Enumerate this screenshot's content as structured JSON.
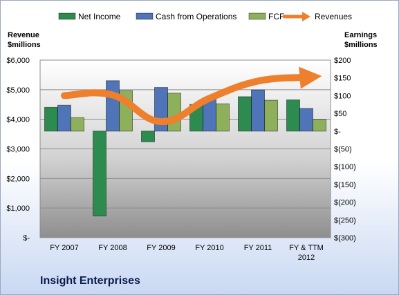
{
  "company_title": "Insight Enterprises",
  "colors": {
    "net_income": "#2e8b50",
    "cash_from_operations": "#4f74b8",
    "fcf": "#8fb05a",
    "revenues": "#ee7f2d"
  },
  "chart_data": {
    "type": "bar",
    "categories": [
      "FY 2007",
      "FY 2008",
      "FY 2009",
      "FY 2010",
      "FY 2011",
      "FY & TTM\n2012"
    ],
    "series": [
      {
        "name": "Net Income",
        "axis": "right",
        "values": [
          67,
          -239,
          -30,
          75,
          97,
          88
        ]
      },
      {
        "name": "Cash from Operations",
        "axis": "right",
        "values": [
          73,
          142,
          123,
          94,
          116,
          64
        ]
      },
      {
        "name": "FCF",
        "axis": "right",
        "values": [
          38,
          114,
          107,
          77,
          87,
          33
        ]
      },
      {
        "name": "Revenues",
        "axis": "left",
        "type": "line",
        "values": [
          4800,
          4820,
          3920,
          4710,
          5290,
          5420
        ]
      }
    ],
    "left_axis": {
      "title": "Revenue\n$millions",
      "ylim": [
        0,
        6000
      ],
      "ticks": [
        0,
        1000,
        2000,
        3000,
        4000,
        5000,
        6000
      ],
      "tick_labels": [
        "$-",
        "$1,000",
        "$2,000",
        "$3,000",
        "$4,000",
        "$5,000",
        "$6,000"
      ]
    },
    "right_axis": {
      "title": "Earnings\n$millions",
      "ylim": [
        -300,
        200
      ],
      "ticks": [
        -300,
        -250,
        -200,
        -150,
        -100,
        -50,
        0,
        50,
        100,
        150,
        200
      ],
      "tick_labels": [
        "$(300)",
        "$(250)",
        "$(200)",
        "$(150)",
        "$(100)",
        "$(50)",
        "$-",
        "$50",
        "$100",
        "$150",
        "$200"
      ]
    },
    "grid": true,
    "legend": "top"
  }
}
